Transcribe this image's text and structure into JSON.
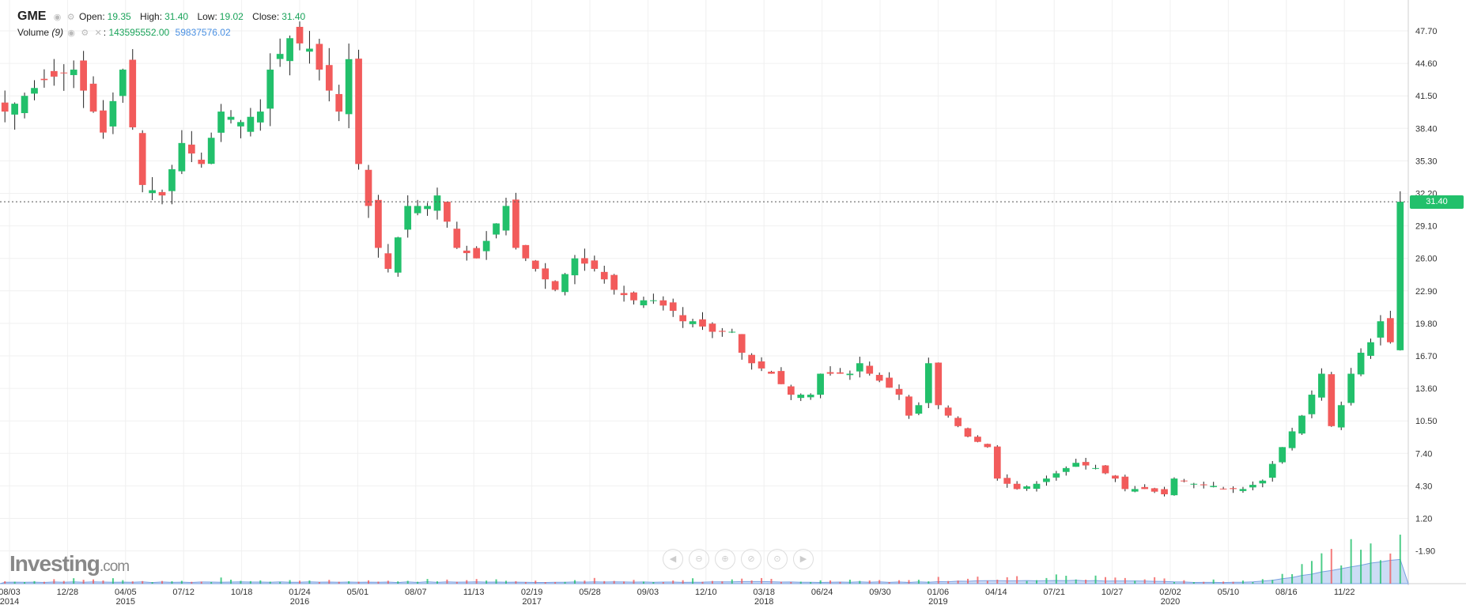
{
  "header": {
    "symbol": "GME",
    "open_label": "Open:",
    "open_value": "19.35",
    "high_label": "High:",
    "high_value": "31.40",
    "low_label": "Low:",
    "low_value": "19.02",
    "close_label": "Close:",
    "close_value": "31.40"
  },
  "volume": {
    "label": "Volume",
    "period": "(9)",
    "value1": "143595552.00",
    "value2": "59837576.02"
  },
  "logo": {
    "name": "Investing",
    "suffix": ".com"
  },
  "last_price": "31.40",
  "colors": {
    "up": "#22c06b",
    "down": "#f25b5b",
    "volume_area": "#aac4ee",
    "price_tag": "#22c06b"
  },
  "nav_icons": [
    "arrow-left-icon",
    "zoom-out-icon",
    "zoom-in-icon",
    "zoom-reset-icon",
    "zoom-reset-alt-icon",
    "arrow-right-icon"
  ],
  "chart_data": {
    "type": "candlestick",
    "y_axis": {
      "ticks": [
        "47.70",
        "44.60",
        "41.50",
        "38.40",
        "35.30",
        "32.20",
        "29.10",
        "26.00",
        "22.90",
        "19.80",
        "16.70",
        "13.60",
        "10.50",
        "7.40",
        "4.30",
        "1.20",
        "-1.90"
      ]
    },
    "x_axis": {
      "ticks": [
        {
          "label": "08/03",
          "year": "2014"
        },
        {
          "label": "12/28",
          "year": ""
        },
        {
          "label": "04/05",
          "year": "2015"
        },
        {
          "label": "07/12",
          "year": ""
        },
        {
          "label": "10/18",
          "year": ""
        },
        {
          "label": "01/24",
          "year": "2016"
        },
        {
          "label": "05/01",
          "year": ""
        },
        {
          "label": "08/07",
          "year": ""
        },
        {
          "label": "11/13",
          "year": ""
        },
        {
          "label": "02/19",
          "year": "2017"
        },
        {
          "label": "05/28",
          "year": ""
        },
        {
          "label": "09/03",
          "year": ""
        },
        {
          "label": "12/10",
          "year": ""
        },
        {
          "label": "03/18",
          "year": "2018"
        },
        {
          "label": "06/24",
          "year": ""
        },
        {
          "label": "09/30",
          "year": ""
        },
        {
          "label": "01/06",
          "year": "2019"
        },
        {
          "label": "04/14",
          "year": ""
        },
        {
          "label": "07/21",
          "year": ""
        },
        {
          "label": "10/27",
          "year": ""
        },
        {
          "label": "02/02",
          "year": "2020"
        },
        {
          "label": "05/10",
          "year": ""
        },
        {
          "label": "08/16",
          "year": ""
        },
        {
          "label": "11/22",
          "year": ""
        }
      ]
    },
    "ylim": [
      -3.5,
      49
    ],
    "price_path": [
      [
        0,
        40
      ],
      [
        4,
        43
      ],
      [
        7,
        44
      ],
      [
        10,
        38
      ],
      [
        12,
        44
      ],
      [
        14,
        33
      ],
      [
        16,
        32
      ],
      [
        18,
        37
      ],
      [
        20,
        35
      ],
      [
        22,
        40
      ],
      [
        24,
        39
      ],
      [
        26,
        40
      ],
      [
        27,
        44
      ],
      [
        29,
        47
      ],
      [
        31,
        46
      ],
      [
        32,
        44
      ],
      [
        34,
        40
      ],
      [
        35,
        45
      ],
      [
        36,
        35
      ],
      [
        38,
        27
      ],
      [
        39,
        25
      ],
      [
        41,
        31
      ],
      [
        43,
        31
      ],
      [
        44,
        32
      ],
      [
        46,
        27
      ],
      [
        48,
        26
      ],
      [
        51,
        31
      ],
      [
        52,
        27
      ],
      [
        55,
        24
      ],
      [
        56,
        23
      ],
      [
        58,
        26
      ],
      [
        60,
        25
      ],
      [
        62,
        23
      ],
      [
        64,
        22
      ],
      [
        66,
        22
      ],
      [
        68,
        21
      ],
      [
        69,
        20
      ],
      [
        70,
        20
      ],
      [
        72,
        19
      ],
      [
        74,
        19
      ],
      [
        75,
        17
      ],
      [
        76,
        16
      ],
      [
        78,
        15
      ],
      [
        80,
        13
      ],
      [
        82,
        13
      ],
      [
        83,
        15
      ],
      [
        86,
        15
      ],
      [
        87,
        16
      ],
      [
        88,
        15
      ],
      [
        91,
        13
      ],
      [
        92,
        11
      ],
      [
        93,
        12
      ],
      [
        94,
        16
      ],
      [
        95,
        12
      ],
      [
        96,
        11
      ],
      [
        98,
        9
      ],
      [
        100,
        8
      ],
      [
        101,
        5
      ],
      [
        103,
        4
      ],
      [
        105,
        4.5
      ],
      [
        107,
        5.5
      ],
      [
        109,
        6.5
      ],
      [
        111,
        6
      ],
      [
        113,
        5
      ],
      [
        114,
        4
      ],
      [
        116,
        4
      ],
      [
        118,
        3.5
      ],
      [
        119,
        5
      ],
      [
        121,
        4.5
      ],
      [
        123,
        4.3
      ],
      [
        124,
        4
      ],
      [
        126,
        4
      ],
      [
        128,
        4.8
      ],
      [
        130,
        8
      ],
      [
        132,
        11
      ],
      [
        133,
        13
      ],
      [
        134,
        15
      ],
      [
        135,
        10
      ],
      [
        136,
        12
      ],
      [
        137,
        15
      ],
      [
        138,
        17
      ],
      [
        139,
        18
      ],
      [
        140,
        20
      ],
      [
        141,
        18
      ],
      [
        142,
        31.4
      ]
    ],
    "volume_scale_max": 143595552.0
  }
}
